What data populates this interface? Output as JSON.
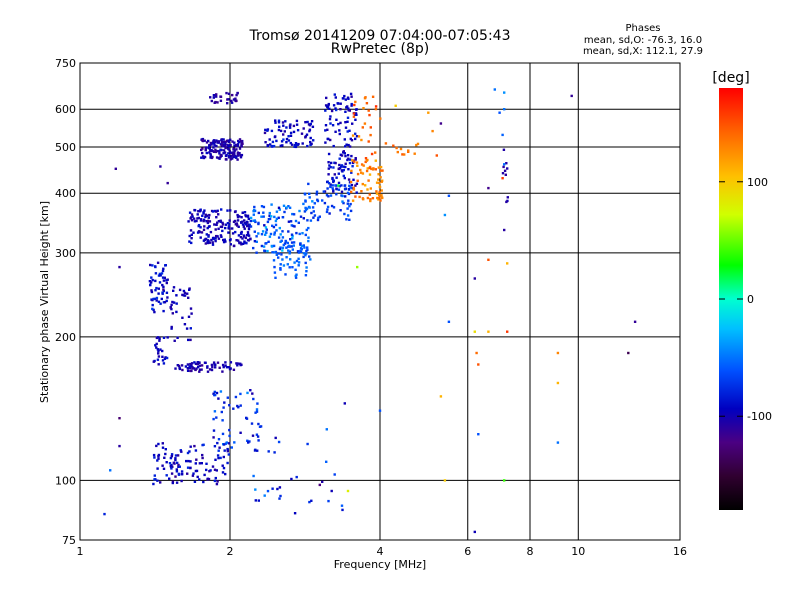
{
  "chart_data": {
    "type": "scatter",
    "title": "Tromsø 20141209 07:04:00-07:05:43",
    "subtitle": "RwPretec (8p)",
    "xlabel": "Frequency [MHz]",
    "ylabel": "Stationary phase Virtual Height [km]",
    "x_scale": "log",
    "y_scale": "log",
    "xlim": [
      1,
      16
    ],
    "ylim": [
      75,
      750
    ],
    "x_ticks": [
      1,
      2,
      4,
      6,
      8,
      10,
      16
    ],
    "x_tick_labels": [
      "1",
      "2",
      "4",
      "6",
      "8",
      "10",
      "16"
    ],
    "y_ticks": [
      75,
      100,
      200,
      300,
      400,
      500,
      600,
      750
    ],
    "y_tick_labels": [
      "75",
      "100",
      "200",
      "300",
      "400",
      "500",
      "600",
      "750"
    ],
    "grid": true,
    "legend": {
      "title": "Phases",
      "lines": [
        "mean, sd,O: -76.3, 16.0",
        "mean, sd,X: 112.1, 27.9"
      ]
    },
    "colorbar": {
      "label": "[deg]",
      "range": [
        -180,
        180
      ],
      "ticks": [
        100,
        0,
        -100
      ],
      "tick_labels": [
        "100",
        "0",
        "-100"
      ]
    },
    "clusters": [
      {
        "x_range": [
          1.75,
          2.12
        ],
        "y_range": [
          470,
          520
        ],
        "n": 160,
        "phase": -105,
        "phase_sd": 12
      },
      {
        "x_range": [
          1.82,
          2.08
        ],
        "y_range": [
          615,
          650
        ],
        "n": 28,
        "phase": -110,
        "phase_sd": 10
      },
      {
        "x_range": [
          2.35,
          2.95
        ],
        "y_range": [
          500,
          570
        ],
        "n": 80,
        "phase": -95,
        "phase_sd": 15
      },
      {
        "x_range": [
          3.1,
          3.6
        ],
        "y_range": [
          400,
          650
        ],
        "n": 150,
        "phase": -95,
        "phase_sd": 15
      },
      {
        "x_range": [
          3.5,
          4.05
        ],
        "y_range": [
          385,
          470
        ],
        "n": 70,
        "phase": 130,
        "phase_sd": 18
      },
      {
        "x_range": [
          3.5,
          4.05
        ],
        "y_range": [
          470,
          640
        ],
        "n": 25,
        "phase": 140,
        "phase_sd": 20
      },
      {
        "x_range": [
          4.1,
          4.8
        ],
        "y_range": [
          480,
          510
        ],
        "n": 12,
        "phase": 135,
        "phase_sd": 10
      },
      {
        "x_range": [
          1.65,
          2.2
        ],
        "y_range": [
          310,
          370
        ],
        "n": 200,
        "phase": -100,
        "phase_sd": 12
      },
      {
        "x_range": [
          2.2,
          2.9
        ],
        "y_range": [
          300,
          380
        ],
        "n": 130,
        "phase": -60,
        "phase_sd": 25
      },
      {
        "x_range": [
          2.45,
          2.9
        ],
        "y_range": [
          265,
          320
        ],
        "n": 60,
        "phase": -55,
        "phase_sd": 15
      },
      {
        "x_range": [
          2.8,
          3.5
        ],
        "y_range": [
          350,
          420
        ],
        "n": 70,
        "phase": -65,
        "phase_sd": 20
      },
      {
        "x_range": [
          1.38,
          1.5
        ],
        "y_range": [
          225,
          290
        ],
        "n": 60,
        "phase": -90,
        "phase_sd": 20
      },
      {
        "x_range": [
          1.52,
          1.68
        ],
        "y_range": [
          195,
          255
        ],
        "n": 35,
        "phase": -100,
        "phase_sd": 12
      },
      {
        "x_range": [
          1.4,
          1.5
        ],
        "y_range": [
          175,
          200
        ],
        "n": 25,
        "phase": -95,
        "phase_sd": 15
      },
      {
        "x_range": [
          1.55,
          2.12
        ],
        "y_range": [
          169,
          177
        ],
        "n": 70,
        "phase": -105,
        "phase_sd": 10
      },
      {
        "x_range": [
          1.85,
          2.3
        ],
        "y_range": [
          115,
          155
        ],
        "n": 60,
        "phase": -75,
        "phase_sd": 25
      },
      {
        "x_range": [
          1.4,
          2.0
        ],
        "y_range": [
          98,
          120
        ],
        "n": 120,
        "phase": -95,
        "phase_sd": 18
      },
      {
        "x_range": [
          2.1,
          3.4
        ],
        "y_range": [
          85,
          130
        ],
        "n": 30,
        "phase": -70,
        "phase_sd": 40
      },
      {
        "x_range": [
          7.05,
          7.25
        ],
        "y_range": [
          380,
          500
        ],
        "n": 10,
        "phase": -110,
        "phase_sd": 5
      }
    ],
    "points": [
      {
        "x": 1.12,
        "y": 85,
        "phase": -80
      },
      {
        "x": 1.15,
        "y": 105,
        "phase": -50
      },
      {
        "x": 1.18,
        "y": 450,
        "phase": -115
      },
      {
        "x": 1.2,
        "y": 280,
        "phase": -110
      },
      {
        "x": 1.2,
        "y": 135,
        "phase": -130
      },
      {
        "x": 1.2,
        "y": 118,
        "phase": -110
      },
      {
        "x": 1.45,
        "y": 455,
        "phase": -110
      },
      {
        "x": 1.5,
        "y": 420,
        "phase": -115
      },
      {
        "x": 3.3,
        "y": 415,
        "phase": 20
      },
      {
        "x": 3.6,
        "y": 280,
        "phase": 60
      },
      {
        "x": 3.4,
        "y": 145,
        "phase": -100
      },
      {
        "x": 3.45,
        "y": 95,
        "phase": 80
      },
      {
        "x": 3.2,
        "y": 95,
        "phase": -100
      },
      {
        "x": 4.0,
        "y": 140,
        "phase": -60
      },
      {
        "x": 4.3,
        "y": 610,
        "phase": 100
      },
      {
        "x": 5.0,
        "y": 590,
        "phase": 120
      },
      {
        "x": 5.1,
        "y": 540,
        "phase": 130
      },
      {
        "x": 5.2,
        "y": 480,
        "phase": 150
      },
      {
        "x": 5.3,
        "y": 560,
        "phase": -120
      },
      {
        "x": 5.5,
        "y": 395,
        "phase": -60
      },
      {
        "x": 5.4,
        "y": 360,
        "phase": -40
      },
      {
        "x": 5.5,
        "y": 215,
        "phase": -60
      },
      {
        "x": 5.3,
        "y": 150,
        "phase": 110
      },
      {
        "x": 5.4,
        "y": 100,
        "phase": 100
      },
      {
        "x": 6.2,
        "y": 265,
        "phase": -110
      },
      {
        "x": 6.2,
        "y": 205,
        "phase": 90
      },
      {
        "x": 6.25,
        "y": 185,
        "phase": 140
      },
      {
        "x": 6.3,
        "y": 175,
        "phase": 150
      },
      {
        "x": 6.3,
        "y": 125,
        "phase": -60
      },
      {
        "x": 6.2,
        "y": 78,
        "phase": -100
      },
      {
        "x": 6.6,
        "y": 410,
        "phase": -120
      },
      {
        "x": 6.6,
        "y": 290,
        "phase": 150
      },
      {
        "x": 6.6,
        "y": 205,
        "phase": 110
      },
      {
        "x": 6.8,
        "y": 660,
        "phase": -50
      },
      {
        "x": 6.95,
        "y": 590,
        "phase": -60
      },
      {
        "x": 7.1,
        "y": 650,
        "phase": -40
      },
      {
        "x": 7.1,
        "y": 600,
        "phase": -50
      },
      {
        "x": 7.05,
        "y": 530,
        "phase": -55
      },
      {
        "x": 7.1,
        "y": 460,
        "phase": -50
      },
      {
        "x": 7.05,
        "y": 430,
        "phase": 160
      },
      {
        "x": 7.1,
        "y": 335,
        "phase": -110
      },
      {
        "x": 7.2,
        "y": 285,
        "phase": 110
      },
      {
        "x": 7.2,
        "y": 205,
        "phase": 160
      },
      {
        "x": 7.1,
        "y": 100,
        "phase": 40
      },
      {
        "x": 9.1,
        "y": 185,
        "phase": 130
      },
      {
        "x": 9.1,
        "y": 160,
        "phase": 110
      },
      {
        "x": 9.1,
        "y": 120,
        "phase": -50
      },
      {
        "x": 9.7,
        "y": 640,
        "phase": -115
      },
      {
        "x": 12.6,
        "y": 185,
        "phase": -140
      },
      {
        "x": 13.0,
        "y": 215,
        "phase": -115
      }
    ]
  }
}
